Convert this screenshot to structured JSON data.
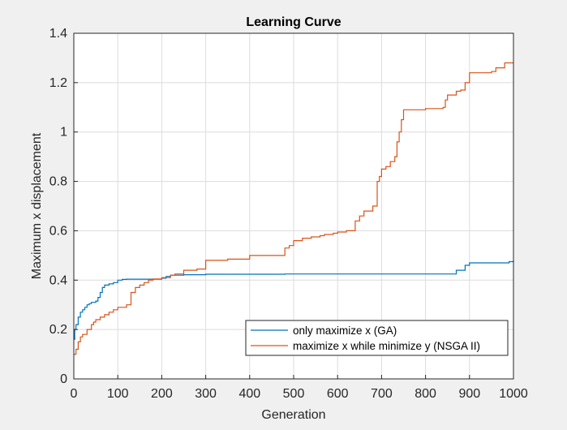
{
  "chart_data": {
    "type": "line",
    "title": "Learning Curve",
    "xlabel": "Generation",
    "ylabel": "Maximum x displacement",
    "xlim": [
      0,
      1000
    ],
    "ylim": [
      0,
      1.4
    ],
    "xticks": [
      0,
      100,
      200,
      300,
      400,
      500,
      600,
      700,
      800,
      900,
      1000
    ],
    "yticks": [
      0,
      0.2,
      0.4,
      0.6,
      0.8,
      1,
      1.2,
      1.4
    ],
    "grid": true,
    "legend_position": "bottom-right",
    "series": [
      {
        "name": "only maximize x (GA)",
        "color": "#0072BD",
        "style": "step",
        "x": [
          0,
          2,
          5,
          10,
          15,
          20,
          25,
          30,
          35,
          40,
          45,
          50,
          55,
          60,
          65,
          70,
          80,
          90,
          100,
          110,
          120,
          200,
          210,
          220,
          250,
          300,
          480,
          500,
          860,
          870,
          890,
          900,
          990,
          1000
        ],
        "y": [
          0.16,
          0.2,
          0.22,
          0.25,
          0.27,
          0.28,
          0.29,
          0.3,
          0.305,
          0.31,
          0.31,
          0.315,
          0.33,
          0.35,
          0.37,
          0.38,
          0.385,
          0.39,
          0.4,
          0.403,
          0.404,
          0.408,
          0.415,
          0.42,
          0.422,
          0.424,
          0.425,
          0.425,
          0.425,
          0.44,
          0.46,
          0.47,
          0.475,
          0.48
        ]
      },
      {
        "name": "maximize x while minimize y (NSGA II)",
        "color": "#D95319",
        "style": "step",
        "x": [
          0,
          5,
          10,
          15,
          20,
          30,
          40,
          45,
          50,
          60,
          70,
          80,
          90,
          100,
          120,
          130,
          140,
          150,
          160,
          170,
          180,
          200,
          220,
          230,
          250,
          280,
          300,
          350,
          400,
          450,
          480,
          490,
          500,
          520,
          540,
          560,
          570,
          590,
          600,
          620,
          630,
          640,
          650,
          660,
          680,
          690,
          695,
          700,
          710,
          720,
          730,
          735,
          740,
          745,
          750,
          800,
          840,
          845,
          850,
          870,
          880,
          890,
          900,
          950,
          960,
          980,
          1000
        ],
        "y": [
          0.1,
          0.12,
          0.15,
          0.17,
          0.18,
          0.2,
          0.22,
          0.23,
          0.24,
          0.25,
          0.26,
          0.27,
          0.28,
          0.29,
          0.3,
          0.35,
          0.37,
          0.38,
          0.39,
          0.4,
          0.405,
          0.41,
          0.42,
          0.425,
          0.44,
          0.445,
          0.48,
          0.485,
          0.5,
          0.5,
          0.53,
          0.54,
          0.56,
          0.57,
          0.575,
          0.58,
          0.585,
          0.59,
          0.595,
          0.6,
          0.6,
          0.64,
          0.66,
          0.68,
          0.7,
          0.8,
          0.82,
          0.85,
          0.86,
          0.88,
          0.9,
          0.96,
          1.0,
          1.05,
          1.09,
          1.095,
          1.1,
          1.13,
          1.15,
          1.165,
          1.17,
          1.2,
          1.24,
          1.245,
          1.26,
          1.28,
          1.28
        ]
      }
    ]
  }
}
